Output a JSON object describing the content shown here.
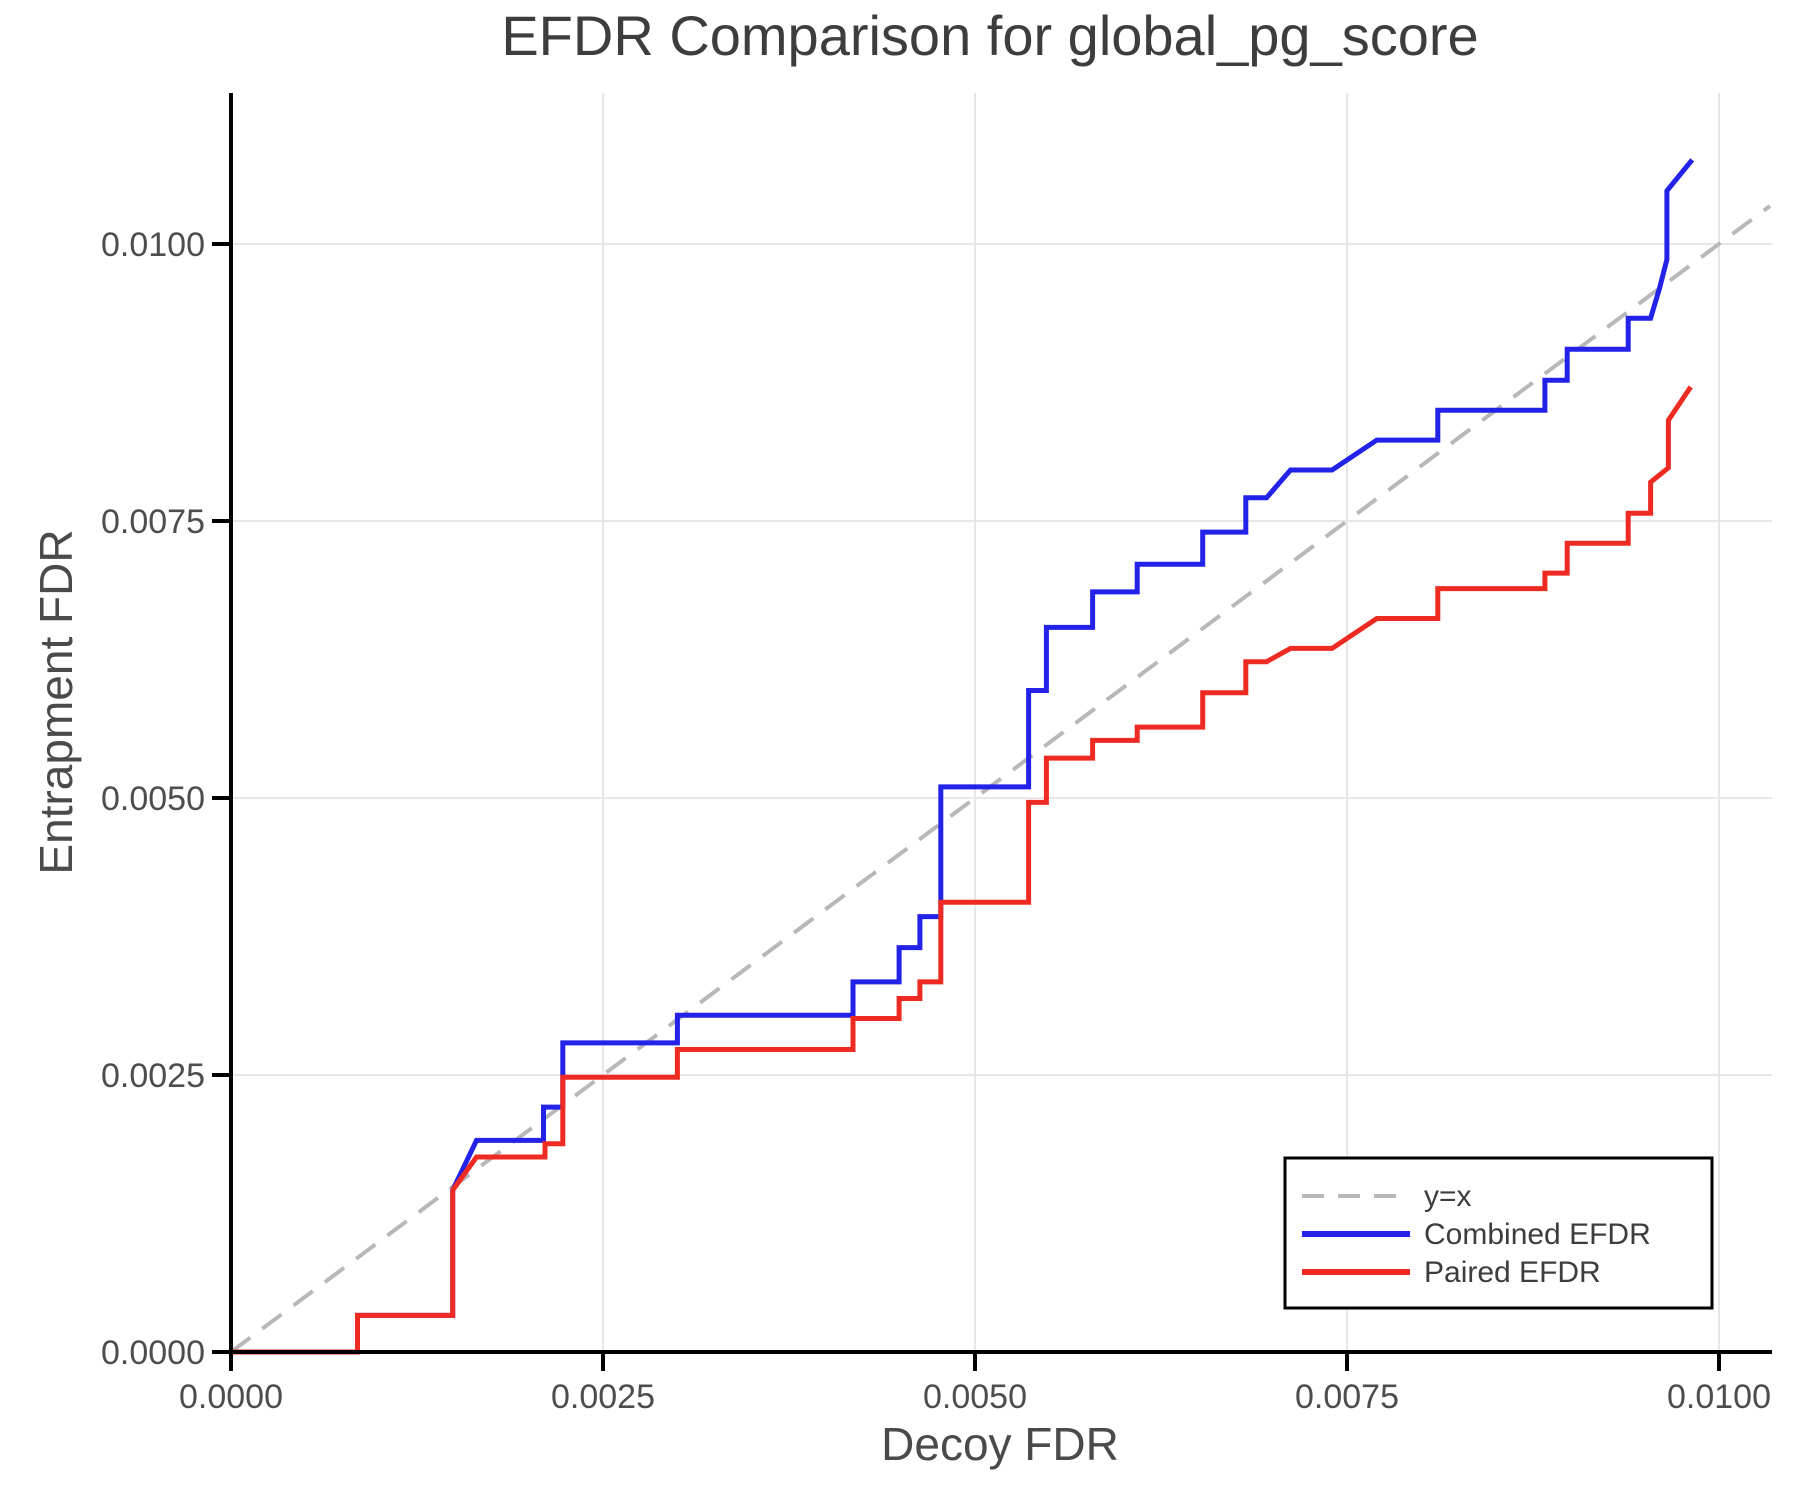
{
  "title": "EFDR Comparison for global_pg_score",
  "axes": {
    "xlabel": "Decoy FDR",
    "ylabel": "Entrapment FDR"
  },
  "colors": {
    "combined": "#2222e8",
    "paired": "#ee2b22",
    "identity": "#b8b8b8",
    "grid": "#e7e7e7",
    "spine": "#000000",
    "text": "#4d4d4d"
  },
  "chart_data": {
    "type": "line",
    "title": "EFDR Comparison for global_pg_score",
    "xlabel": "Decoy FDR",
    "ylabel": "Entrapment FDR",
    "xlim": [
      0,
      0.010343
    ],
    "ylim": [
      0,
      0.011343
    ],
    "x_ticks": [
      0.0,
      0.0025,
      0.005,
      0.0075,
      0.01
    ],
    "x_tick_labels": [
      "0.0000",
      "0.0025",
      "0.0050",
      "0.0075",
      "0.0100"
    ],
    "y_ticks": [
      0.0,
      0.0025,
      0.005,
      0.0075,
      0.01
    ],
    "y_tick_labels": [
      "0.0000",
      "0.0025",
      "0.0050",
      "0.0075",
      "0.0100"
    ],
    "grid": true,
    "legend_position": "lower right",
    "series": [
      {
        "name": "y=x",
        "style": "dashed",
        "color": "#b8b8b8",
        "points": [
          [
            0,
            0
          ],
          [
            0.010343,
            0.010343
          ]
        ]
      },
      {
        "name": "Combined EFDR",
        "style": "solid",
        "color": "#2222e8",
        "points": [
          [
            0.0,
            0.0
          ],
          [
            0.00085,
            0.0
          ],
          [
            0.00085,
            0.00033
          ],
          [
            0.00149,
            0.00033
          ],
          [
            0.00149,
            0.00146
          ],
          [
            0.00165,
            0.00191
          ],
          [
            0.0021,
            0.00191
          ],
          [
            0.0021,
            0.00221
          ],
          [
            0.00223,
            0.00221
          ],
          [
            0.00223,
            0.00279
          ],
          [
            0.003,
            0.00279
          ],
          [
            0.003,
            0.00304
          ],
          [
            0.00418,
            0.00304
          ],
          [
            0.00418,
            0.00334
          ],
          [
            0.00449,
            0.00334
          ],
          [
            0.00449,
            0.00365
          ],
          [
            0.00463,
            0.00365
          ],
          [
            0.00463,
            0.00393
          ],
          [
            0.00477,
            0.00393
          ],
          [
            0.00477,
            0.0051
          ],
          [
            0.00536,
            0.0051
          ],
          [
            0.00536,
            0.00597
          ],
          [
            0.00548,
            0.00597
          ],
          [
            0.00548,
            0.00654
          ],
          [
            0.00579,
            0.00654
          ],
          [
            0.00579,
            0.00686
          ],
          [
            0.00609,
            0.00686
          ],
          [
            0.00609,
            0.00711
          ],
          [
            0.00653,
            0.00711
          ],
          [
            0.00653,
            0.0074
          ],
          [
            0.00682,
            0.0074
          ],
          [
            0.00682,
            0.00771
          ],
          [
            0.00696,
            0.00771
          ],
          [
            0.00712,
            0.00796
          ],
          [
            0.0074,
            0.00796
          ],
          [
            0.0077,
            0.00823
          ],
          [
            0.00811,
            0.00823
          ],
          [
            0.00811,
            0.0085
          ],
          [
            0.00883,
            0.0085
          ],
          [
            0.00883,
            0.00877
          ],
          [
            0.00898,
            0.00877
          ],
          [
            0.00898,
            0.00905
          ],
          [
            0.00939,
            0.00905
          ],
          [
            0.00939,
            0.00933
          ],
          [
            0.00954,
            0.00933
          ],
          [
            0.0096,
            0.0096
          ],
          [
            0.00965,
            0.00986
          ],
          [
            0.00965,
            0.01048
          ],
          [
            0.00982,
            0.01076
          ]
        ]
      },
      {
        "name": "Paired EFDR",
        "style": "solid",
        "color": "#ee2b22",
        "points": [
          [
            0.0,
            0.0
          ],
          [
            0.00085,
            0.0
          ],
          [
            0.00085,
            0.00033
          ],
          [
            0.00149,
            0.00033
          ],
          [
            0.00149,
            0.00146
          ],
          [
            0.00165,
            0.00176
          ],
          [
            0.00211,
            0.00176
          ],
          [
            0.00211,
            0.00188
          ],
          [
            0.00223,
            0.00188
          ],
          [
            0.00223,
            0.00248
          ],
          [
            0.003,
            0.00248
          ],
          [
            0.003,
            0.00273
          ],
          [
            0.00418,
            0.00273
          ],
          [
            0.00418,
            0.00301
          ],
          [
            0.00449,
            0.00301
          ],
          [
            0.00449,
            0.00319
          ],
          [
            0.00463,
            0.00319
          ],
          [
            0.00463,
            0.00334
          ],
          [
            0.00477,
            0.00334
          ],
          [
            0.00477,
            0.00406
          ],
          [
            0.00536,
            0.00406
          ],
          [
            0.00536,
            0.00496
          ],
          [
            0.00548,
            0.00496
          ],
          [
            0.00548,
            0.00536
          ],
          [
            0.00579,
            0.00536
          ],
          [
            0.00579,
            0.00552
          ],
          [
            0.00609,
            0.00552
          ],
          [
            0.00609,
            0.00564
          ],
          [
            0.00653,
            0.00564
          ],
          [
            0.00653,
            0.00595
          ],
          [
            0.00682,
            0.00595
          ],
          [
            0.00682,
            0.00623
          ],
          [
            0.00696,
            0.00623
          ],
          [
            0.00712,
            0.00635
          ],
          [
            0.0074,
            0.00635
          ],
          [
            0.0077,
            0.00662
          ],
          [
            0.00811,
            0.00662
          ],
          [
            0.00811,
            0.00689
          ],
          [
            0.00883,
            0.00689
          ],
          [
            0.00883,
            0.00703
          ],
          [
            0.00898,
            0.00703
          ],
          [
            0.00898,
            0.0073
          ],
          [
            0.00939,
            0.0073
          ],
          [
            0.00939,
            0.00757
          ],
          [
            0.00954,
            0.00757
          ],
          [
            0.00954,
            0.00785
          ],
          [
            0.00966,
            0.00798
          ],
          [
            0.00966,
            0.00841
          ],
          [
            0.00981,
            0.00871
          ]
        ]
      }
    ]
  }
}
